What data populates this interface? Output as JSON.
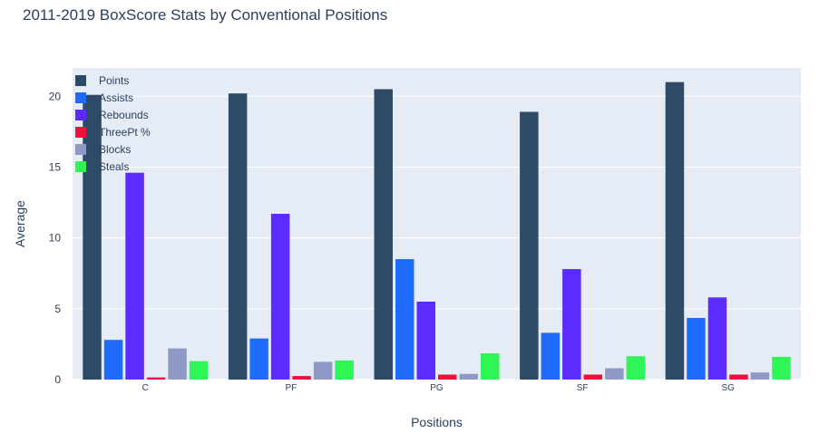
{
  "chart_data": {
    "type": "bar",
    "title": "2011-2019 BoxScore Stats by Conventional Positions",
    "xlabel": "Positions",
    "ylabel": "Average",
    "categories": [
      "C",
      "PF",
      "PG",
      "SF",
      "SG"
    ],
    "ylim": [
      0,
      22
    ],
    "yticks": [
      0,
      5,
      10,
      15,
      20
    ],
    "grid": true,
    "legend_position": "top-left",
    "series": [
      {
        "name": "Points",
        "color": "#2e4a66",
        "values": [
          20.1,
          20.2,
          20.5,
          18.9,
          21.0
        ]
      },
      {
        "name": "Assists",
        "color": "#1f6bff",
        "values": [
          2.8,
          2.9,
          8.5,
          3.3,
          4.35
        ]
      },
      {
        "name": "Rebounds",
        "color": "#5b2bff",
        "values": [
          14.6,
          11.7,
          5.5,
          7.8,
          5.8
        ]
      },
      {
        "name": "ThreePt %",
        "color": "#f0103c",
        "values": [
          0.15,
          0.25,
          0.35,
          0.35,
          0.35
        ]
      },
      {
        "name": "Blocks",
        "color": "#8f99c5",
        "values": [
          2.2,
          1.25,
          0.4,
          0.8,
          0.5
        ]
      },
      {
        "name": "Steals",
        "color": "#2ff556",
        "values": [
          1.3,
          1.35,
          1.85,
          1.65,
          1.6
        ]
      }
    ]
  }
}
